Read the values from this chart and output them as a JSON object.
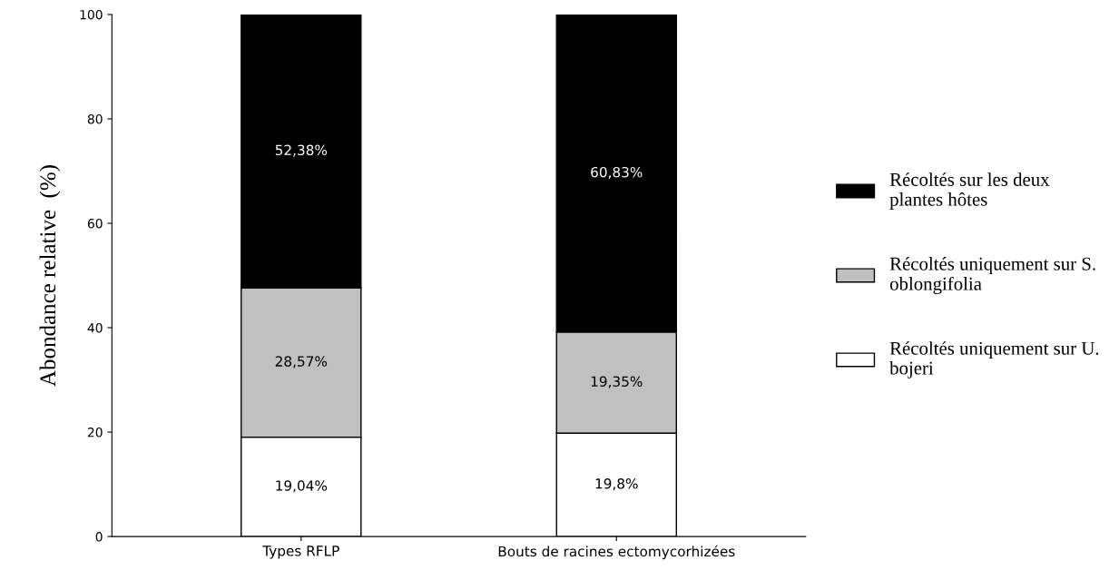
{
  "chart_data": {
    "type": "bar",
    "stacked": true,
    "ylabel": "Abondance relative  (%)",
    "categories": [
      "Types RFLP",
      "Bouts de racines ectomycorhizées"
    ],
    "series": [
      {
        "name": "Récoltés uniquement sur U. bojeri",
        "color": "#ffffff",
        "values": [
          19.04,
          19.8
        ],
        "value_labels": [
          "19,04%",
          "19,8%"
        ]
      },
      {
        "name": "Récoltés uniquement sur S. oblongifolia",
        "color": "#c0c0c0",
        "values": [
          28.57,
          19.35
        ],
        "value_labels": [
          "28,57%",
          "19,35%"
        ]
      },
      {
        "name": "Récoltés sur les deux plantes hôtes",
        "color": "#000000",
        "values": [
          52.38,
          60.83
        ],
        "value_labels": [
          "52,38%",
          "60,83%"
        ]
      }
    ],
    "ylim": [
      0,
      100
    ],
    "yticks": [
      0,
      20,
      40,
      60,
      80,
      100
    ],
    "grid": false,
    "legend": "right"
  }
}
